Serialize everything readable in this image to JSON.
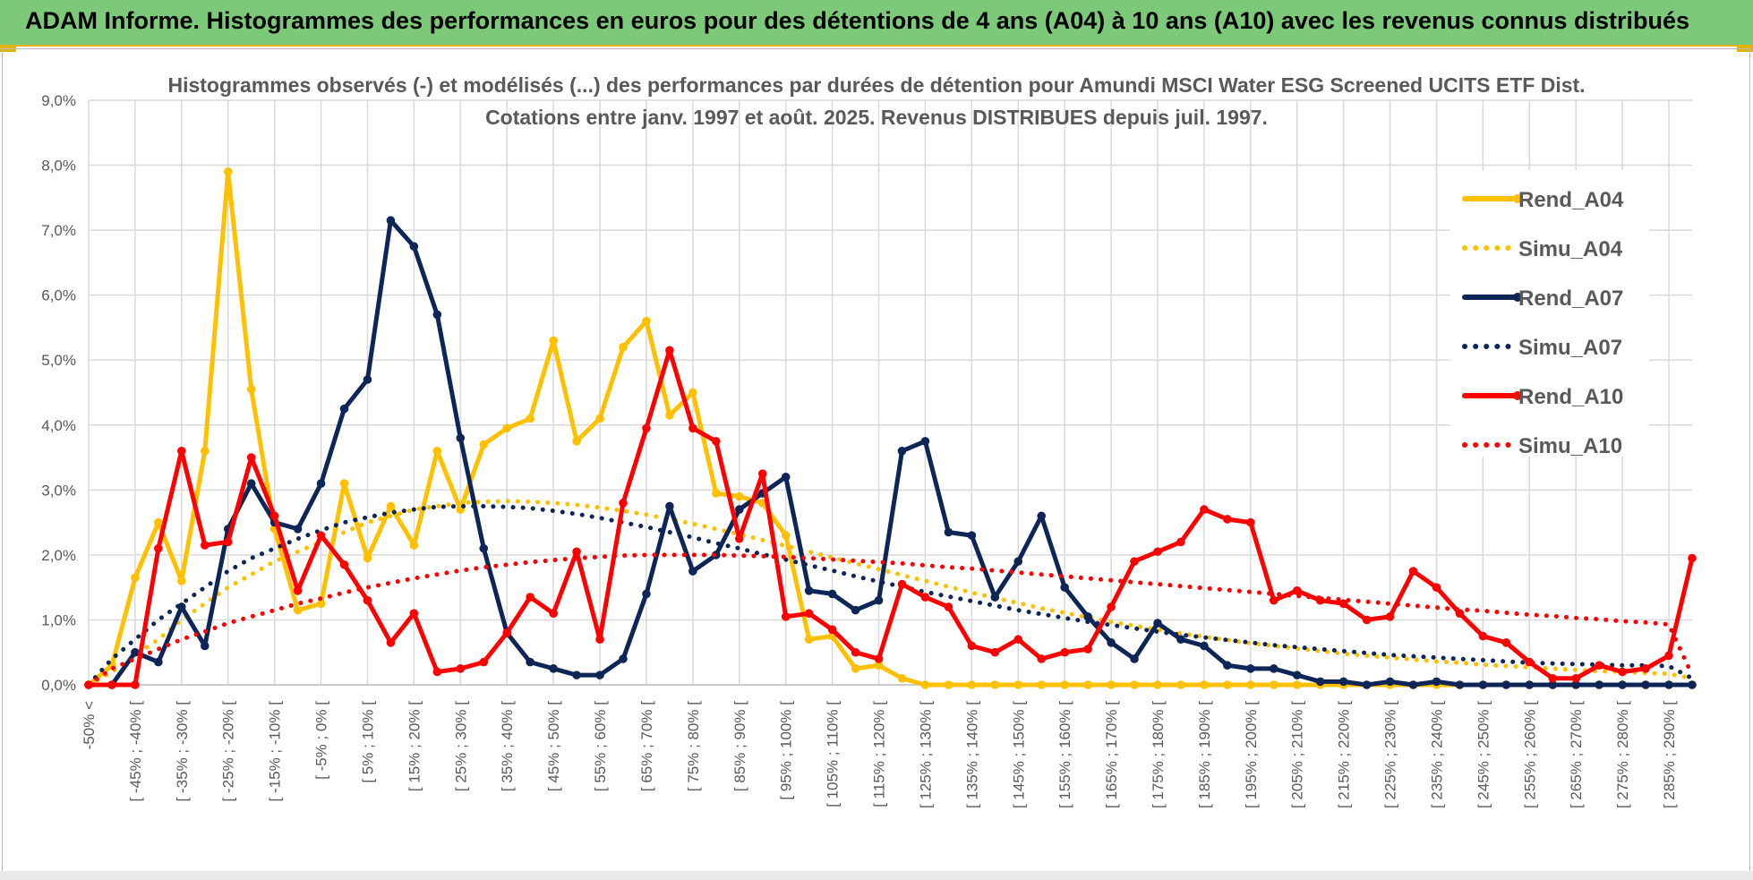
{
  "header": {
    "title": "ADAM Informe. Histogrammes des performances en euros pour des détentions de 4 ans (A04) à 10 ans (A10) avec les revenus connus distribués"
  },
  "colors": {
    "header_bg": "#7dc97a",
    "accent": "#e2b400",
    "A04": "#ffc000",
    "A07": "#0e2657",
    "A10": "#ff0000"
  },
  "chart_data": {
    "type": "line",
    "title_lines": [
      "Histogrammes observés (-) et modélisés (...) des performances par durées de détention pour Amundi MSCI Water ESG Screened UCITS ETF Dist.",
      "Cotations entre janv. 1997 et août. 2025. Revenus DISTRIBUES depuis juil. 1997."
    ],
    "xlabel": "",
    "ylabel": "",
    "ylim": [
      0,
      9
    ],
    "y_ticks": [
      "0,0%",
      "1,0%",
      "2,0%",
      "3,0%",
      "4,0%",
      "5,0%",
      "6,0%",
      "7,0%",
      "8,0%",
      "9,0%"
    ],
    "grid": true,
    "legend_position": "top-right",
    "x_labels": [
      "-50% <",
      "[ -45% ; -40% [",
      "[ -35% ; -30% [",
      "[ -25% ; -20% [",
      "[ -15% ; -10% [",
      "[ -5% ; 0% [",
      "[ 5% ; 10% [",
      "[ 15% ; 20% [",
      "[ 25% ; 30% [",
      "[ 35% ; 40% [",
      "[ 45% ; 50% [",
      "[ 55% ; 60% [",
      "[ 65% ; 70% [",
      "[ 75% ; 80% [",
      "[ 85% ; 90% [",
      "[ 95% ; 100% [",
      "[ 105% ; 110% [",
      "[ 115% ; 120% [",
      "[ 125% ; 130% [",
      "[ 135% ; 140% [",
      "[ 145% ; 150% [",
      "[ 155% ; 160% [",
      "[ 165% ; 170% [",
      "[ 175% ; 180% [",
      "[ 185% ; 190% [",
      "[ 195% ; 200% [",
      "[ 205% ; 210% [",
      "[ 215% ; 220% [",
      "[ 225% ; 230% [",
      "[ 235% ; 240% [",
      "[ 245% ; 250% [",
      "[ 255% ; 260% [",
      "[ 265% ; 270% [",
      "[ 275% ; 280% [",
      "[ 285% ; 290% ["
    ],
    "series": [
      {
        "name": "Rend_A04",
        "style": "solid",
        "color": "#ffc000",
        "values": [
          0.0,
          0.3,
          1.65,
          2.5,
          1.6,
          3.6,
          7.9,
          4.55,
          2.4,
          1.15,
          1.25,
          3.1,
          1.95,
          2.75,
          2.15,
          3.6,
          2.7,
          3.7,
          3.95,
          4.1,
          5.3,
          3.75,
          4.1,
          5.2,
          5.6,
          4.15,
          4.5,
          2.95,
          2.9,
          2.8,
          2.3,
          0.7,
          0.75,
          0.25,
          0.3,
          0.1,
          0.0,
          0.0,
          0.0,
          0.0,
          0.0,
          0.0,
          0.0,
          0.0,
          0.0,
          0.0,
          0.0,
          0.0,
          0.0,
          0.0,
          0.0,
          0.0,
          0.0,
          0.0,
          0.0,
          0.0,
          0.0,
          0.0,
          0.0,
          0.0,
          0.0,
          0.0,
          0.0,
          0.0,
          0.0,
          0.0,
          0.0,
          0.0,
          0.0,
          0.0
        ]
      },
      {
        "name": "Simu_A04",
        "style": "dotted",
        "color": "#ffc000",
        "values": [
          0.0,
          0.2,
          0.45,
          0.7,
          1.0,
          1.25,
          1.5,
          1.7,
          1.9,
          2.05,
          2.2,
          2.35,
          2.5,
          2.6,
          2.7,
          2.75,
          2.8,
          2.82,
          2.83,
          2.82,
          2.8,
          2.77,
          2.73,
          2.68,
          2.62,
          2.55,
          2.48,
          2.4,
          2.32,
          2.23,
          2.14,
          2.05,
          1.96,
          1.87,
          1.78,
          1.69,
          1.6,
          1.51,
          1.42,
          1.34,
          1.26,
          1.18,
          1.11,
          1.04,
          0.97,
          0.91,
          0.85,
          0.79,
          0.74,
          0.69,
          0.64,
          0.6,
          0.56,
          0.52,
          0.48,
          0.45,
          0.42,
          0.39,
          0.36,
          0.34,
          0.31,
          0.29,
          0.27,
          0.25,
          0.23,
          0.21,
          0.2,
          0.18,
          0.17,
          0.1
        ]
      },
      {
        "name": "Rend_A07",
        "style": "solid",
        "color": "#0e2657",
        "values": [
          0.0,
          0.0,
          0.5,
          0.35,
          1.2,
          0.6,
          2.4,
          3.1,
          2.5,
          2.4,
          3.1,
          4.25,
          4.7,
          7.15,
          6.75,
          5.7,
          3.8,
          2.1,
          0.8,
          0.35,
          0.25,
          0.15,
          0.15,
          0.4,
          1.4,
          2.75,
          1.75,
          2.0,
          2.7,
          2.95,
          3.2,
          1.45,
          1.4,
          1.15,
          1.3,
          3.6,
          3.75,
          2.35,
          2.3,
          1.35,
          1.9,
          2.6,
          1.5,
          1.05,
          0.65,
          0.4,
          0.95,
          0.7,
          0.6,
          0.3,
          0.25,
          0.25,
          0.15,
          0.05,
          0.05,
          0.0,
          0.05,
          0.0,
          0.05,
          0.0,
          0.0,
          0.0,
          0.0,
          0.0,
          0.0,
          0.0,
          0.0,
          0.0,
          0.0,
          0.0
        ]
      },
      {
        "name": "Simu_A07",
        "style": "dotted",
        "color": "#0e2657",
        "values": [
          0.0,
          0.4,
          0.7,
          1.0,
          1.25,
          1.5,
          1.75,
          1.95,
          2.1,
          2.25,
          2.38,
          2.5,
          2.58,
          2.65,
          2.7,
          2.74,
          2.75,
          2.75,
          2.74,
          2.72,
          2.68,
          2.63,
          2.57,
          2.5,
          2.43,
          2.35,
          2.27,
          2.18,
          2.1,
          2.01,
          1.93,
          1.84,
          1.76,
          1.67,
          1.59,
          1.51,
          1.43,
          1.36,
          1.29,
          1.22,
          1.15,
          1.09,
          1.03,
          0.97,
          0.92,
          0.87,
          0.82,
          0.77,
          0.73,
          0.69,
          0.65,
          0.61,
          0.58,
          0.55,
          0.52,
          0.49,
          0.46,
          0.44,
          0.42,
          0.4,
          0.38,
          0.36,
          0.34,
          0.33,
          0.32,
          0.31,
          0.3,
          0.3,
          0.29,
          0.1
        ]
      },
      {
        "name": "Rend_A10",
        "style": "solid",
        "color": "#ff0000",
        "values": [
          0.0,
          0.0,
          0.0,
          2.1,
          3.6,
          2.15,
          2.2,
          3.5,
          2.6,
          1.45,
          2.3,
          1.85,
          1.3,
          0.65,
          1.1,
          0.2,
          0.25,
          0.35,
          0.8,
          1.35,
          1.1,
          2.05,
          0.7,
          2.8,
          3.95,
          5.15,
          3.95,
          3.75,
          2.25,
          3.25,
          1.05,
          1.1,
          0.85,
          0.5,
          0.4,
          1.55,
          1.35,
          1.2,
          0.6,
          0.5,
          0.7,
          0.4,
          0.5,
          0.55,
          1.2,
          1.9,
          2.05,
          2.2,
          2.7,
          2.55,
          2.5,
          1.3,
          1.45,
          1.3,
          1.25,
          1.0,
          1.05,
          1.75,
          1.5,
          1.1,
          0.75,
          0.65,
          0.35,
          0.1,
          0.1,
          0.3,
          0.2,
          0.25,
          0.45,
          1.95
        ]
      },
      {
        "name": "Simu_A10",
        "style": "dotted",
        "color": "#ff0000",
        "values": [
          0.0,
          0.25,
          0.4,
          0.55,
          0.7,
          0.82,
          0.95,
          1.05,
          1.15,
          1.25,
          1.33,
          1.42,
          1.5,
          1.57,
          1.64,
          1.7,
          1.76,
          1.81,
          1.85,
          1.89,
          1.92,
          1.95,
          1.97,
          1.99,
          2.0,
          2.0,
          2.0,
          2.0,
          1.99,
          1.98,
          1.97,
          1.95,
          1.93,
          1.91,
          1.89,
          1.87,
          1.84,
          1.81,
          1.79,
          1.76,
          1.73,
          1.7,
          1.67,
          1.64,
          1.61,
          1.58,
          1.55,
          1.52,
          1.49,
          1.46,
          1.43,
          1.4,
          1.37,
          1.34,
          1.31,
          1.28,
          1.25,
          1.22,
          1.19,
          1.16,
          1.14,
          1.11,
          1.08,
          1.06,
          1.03,
          1.01,
          0.98,
          0.96,
          0.93,
          0.15
        ]
      }
    ]
  }
}
